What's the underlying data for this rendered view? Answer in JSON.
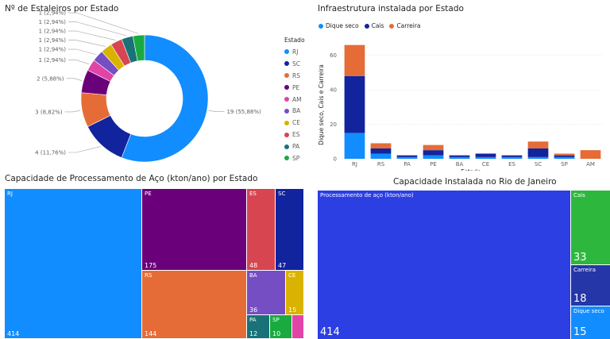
{
  "donut": {
    "title": "Nº de Estaleiros por Estado",
    "legend_title": "Estado",
    "chart_data": {
      "type": "pie",
      "hole": true,
      "slices": [
        {
          "label": "RJ",
          "value": 19,
          "data_label": "19 (55,88%)",
          "color": "#118DFF"
        },
        {
          "label": "SC",
          "value": 4,
          "data_label": "4 (11,76%)",
          "color": "#12239E"
        },
        {
          "label": "RS",
          "value": 3,
          "data_label": "3 (8,82%)",
          "color": "#E66C37"
        },
        {
          "label": "PE",
          "value": 2,
          "data_label": "2 (5,88%)",
          "color": "#6B007B"
        },
        {
          "label": "AM",
          "value": 1,
          "data_label": "1 (2,94%)",
          "color": "#E044A7"
        },
        {
          "label": "BA",
          "value": 1,
          "data_label": "1 (2,94%)",
          "color": "#744EC2"
        },
        {
          "label": "CE",
          "value": 1,
          "data_label": "1 (2,94%)",
          "color": "#D9B300"
        },
        {
          "label": "ES",
          "value": 1,
          "data_label": "1 (2,94%)",
          "color": "#D64550"
        },
        {
          "label": "PA",
          "value": 1,
          "data_label": "1 (2,94%)",
          "color": "#197278"
        },
        {
          "label": "SP",
          "value": 1,
          "data_label": "1 (2,94%)",
          "color": "#1AAB40"
        }
      ]
    }
  },
  "infra": {
    "title": "Infraestrutura instalada por Estado",
    "chart_data": {
      "type": "bar",
      "stacked": true,
      "categories": [
        "RJ",
        "RS",
        "PA",
        "PE",
        "BA",
        "CE",
        "ES",
        "SC",
        "SP",
        "AM"
      ],
      "series": [
        {
          "name": "Dique seco",
          "color": "#118DFF",
          "values": [
            15,
            3,
            1,
            2,
            1,
            1,
            1,
            1,
            1,
            0
          ]
        },
        {
          "name": "Cais",
          "color": "#12239E",
          "values": [
            33,
            3,
            1,
            3,
            1,
            2,
            1,
            5,
            1,
            0
          ]
        },
        {
          "name": "Carreira",
          "color": "#E66C37",
          "values": [
            18,
            3,
            0,
            3,
            0,
            0,
            0,
            4,
            1,
            5
          ]
        }
      ],
      "xlabel": "Estado",
      "ylabel": "Dique seco, Cais e Carreira",
      "ylim": [
        0,
        70
      ],
      "yticks": [
        0,
        20,
        40,
        60
      ],
      "grid": true,
      "legend_position": "top-left"
    }
  },
  "treemap_states": {
    "title": "Capacidade de Processamento de Aço (kton/ano) por Estado",
    "chart_data": {
      "type": "treemap",
      "items": [
        {
          "label": "RJ",
          "value": 414,
          "color": "#118DFF"
        },
        {
          "label": "PE",
          "value": 175,
          "color": "#6B007B"
        },
        {
          "label": "ES",
          "value": 48,
          "color": "#D64550"
        },
        {
          "label": "SC",
          "value": 47,
          "color": "#12239E"
        },
        {
          "label": "RS",
          "value": 144,
          "color": "#E66C37"
        },
        {
          "label": "BA",
          "value": 36,
          "color": "#744EC2"
        },
        {
          "label": "CE",
          "value": 15,
          "color": "#D9B300"
        },
        {
          "label": "PA",
          "value": 12,
          "color": "#197278"
        },
        {
          "label": "SP",
          "value": 10,
          "color": "#1AAB40"
        },
        {
          "label": "",
          "value": null,
          "color": "#E044A7"
        }
      ]
    }
  },
  "treemap_rj": {
    "title": "Capacidade Instalada no Rio de Janeiro",
    "chart_data": {
      "type": "treemap",
      "items": [
        {
          "label": "Processamento de aço (kton/ano)",
          "value": 414,
          "color": "#2B3FE3"
        },
        {
          "label": "Cais",
          "value": 33,
          "color": "#2DB83D"
        },
        {
          "label": "Carreira",
          "value": 18,
          "color": "#2536A8"
        },
        {
          "label": "Dique seco",
          "value": 15,
          "color": "#118DFF"
        }
      ]
    }
  }
}
